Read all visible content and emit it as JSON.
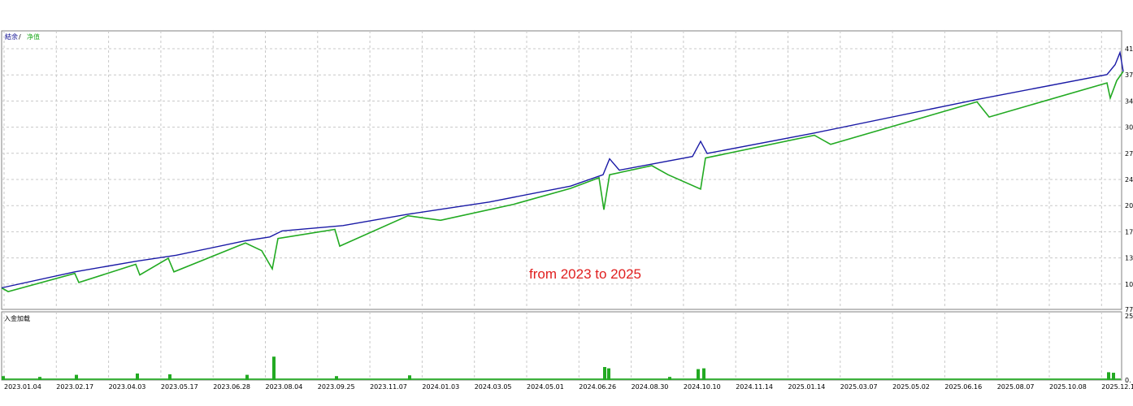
{
  "chart_data": [
    {
      "type": "line",
      "legend": [
        "結余",
        "净值"
      ],
      "legend_separator": " / ",
      "legend_placement": "top-left",
      "annotation": "from 2023 to 2025",
      "y_tick_labels": [
        "41",
        "37",
        "34",
        "30",
        "27",
        "24",
        "20",
        "17",
        "13",
        "10",
        "77"
      ],
      "x_tick_labels": [
        "2023.01.04",
        "2023.02.17",
        "2023.04.03",
        "2023.05.17",
        "2023.06.28",
        "2023.08.04",
        "2023.09.25",
        "2023.11.07",
        "2024.01.03",
        "2024.03.05",
        "2024.05.01",
        "2024.06.26",
        "2024.08.30",
        "2024.10.10",
        "2024.11.14",
        "2025.01.14",
        "2025.03.07",
        "2025.05.02",
        "2025.06.16",
        "2025.08.07",
        "2025.10.08",
        "2025.12.10"
      ],
      "grid": true,
      "colors": {
        "balance": "#1a1aa6",
        "equity": "#22aa22"
      },
      "series": [
        {
          "name": "結余",
          "x": [
            0,
            90,
            165,
            215,
            300,
            330,
            345,
            420,
            500,
            600,
            700,
            740,
            748,
            760,
            850,
            860,
            868,
            1000,
            1200,
            1360,
            1370,
            1376,
            1380
          ],
          "y": [
            9.5,
            11.6,
            13.0,
            13.8,
            15.7,
            16.2,
            17.0,
            17.7,
            19.2,
            20.8,
            22.9,
            24.4,
            26.5,
            25.0,
            26.8,
            28.8,
            27.2,
            29.9,
            34.3,
            37.6,
            38.9,
            40.5,
            38.0
          ]
        },
        {
          "name": "净值",
          "x": [
            0,
            8,
            90,
            95,
            165,
            170,
            205,
            212,
            300,
            320,
            333,
            340,
            410,
            416,
            500,
            540,
            630,
            700,
            735,
            741,
            748,
            800,
            820,
            860,
            866,
            1000,
            1020,
            1200,
            1215,
            1360,
            1364,
            1372,
            1380
          ],
          "y": [
            9.5,
            9.0,
            11.4,
            10.2,
            12.6,
            11.2,
            13.4,
            11.6,
            15.4,
            14.4,
            12.0,
            16.0,
            17.2,
            15.0,
            19.0,
            18.4,
            20.5,
            22.6,
            24.0,
            19.8,
            24.4,
            25.6,
            24.4,
            22.5,
            26.6,
            29.6,
            28.4,
            34.0,
            32.0,
            36.5,
            34.5,
            36.8,
            38.0
          ]
        }
      ]
    },
    {
      "type": "bar",
      "title": "入金加载",
      "y_tick_labels": [
        "25",
        "0."
      ],
      "colors": {
        "bars": "#22aa22"
      },
      "ylim": [
        0,
        25
      ],
      "x": [
        0,
        45,
        90,
        165,
        205,
        300,
        333,
        410,
        500,
        740,
        745,
        820,
        855,
        862,
        1360,
        1366
      ],
      "values": [
        1.5,
        1.2,
        2.0,
        2.5,
        2.2,
        2.0,
        9.0,
        1.5,
        1.8,
        5.0,
        4.5,
        1.2,
        4.2,
        4.5,
        3.0,
        2.8
      ]
    }
  ]
}
